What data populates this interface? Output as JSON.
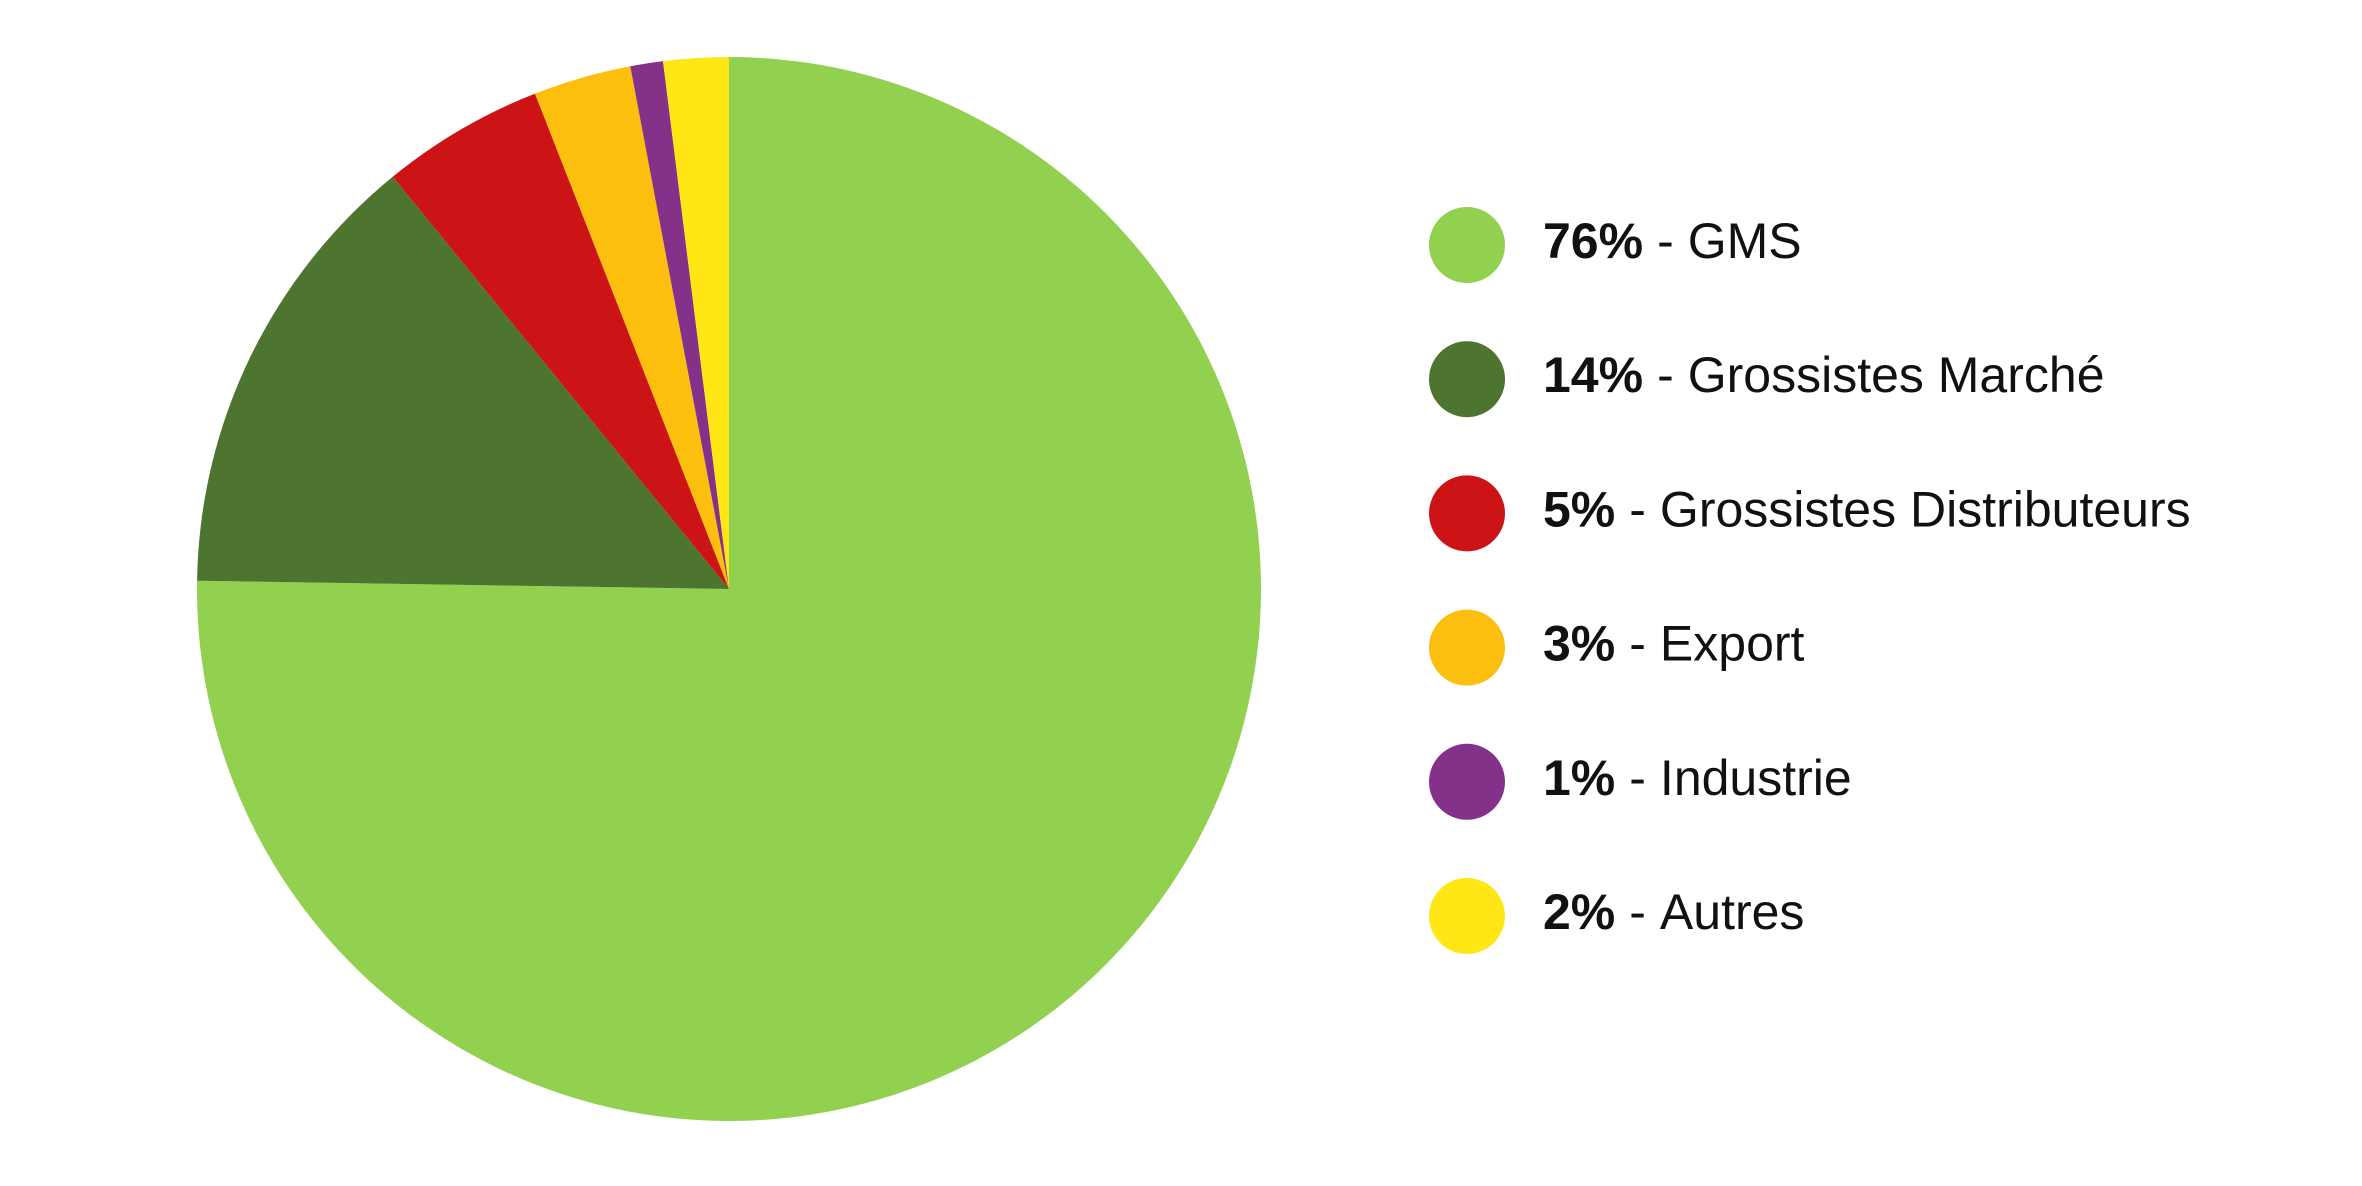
{
  "chart_data": {
    "type": "pie",
    "categories": [
      "GMS",
      "Grossistes Marché",
      "Grossistes Distributeurs",
      "Export",
      "Industrie",
      "Autres"
    ],
    "values": [
      76,
      14,
      5,
      3,
      1,
      2
    ],
    "value_labels": [
      "76%",
      "14%",
      "5%",
      "3%",
      "1%",
      "2%"
    ],
    "label_separator": "-",
    "colors": [
      "#92d050",
      "#4e7530",
      "#cc1417",
      "#fdbf0e",
      "#84318a",
      "#ffe614"
    ],
    "legend": "right"
  }
}
